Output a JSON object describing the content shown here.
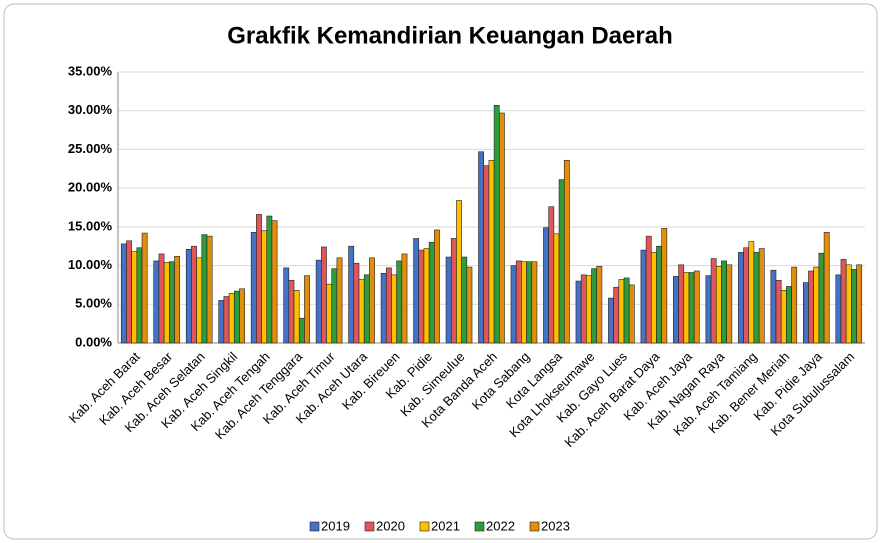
{
  "chart_data": {
    "type": "bar",
    "title": "Grakfik Kemandirian Keuangan Daerah",
    "categories": [
      "Kab. Aceh Barat",
      "Kab. Aceh Besar",
      "Kab. Aceh Selatan",
      "Kab. Aceh Singkil",
      "Kab. Aceh Tengah",
      "Kab. Aceh Tenggara",
      "Kab. Aceh Timur",
      "Kab. Aceh Utara",
      "Kab. Bireuen",
      "Kab. Pidie",
      "Kab. Simeulue",
      "Kota Banda Aceh",
      "Kota Sabang",
      "Kota Langsa",
      "Kota Lhokseumawe",
      "Kab. Gayo Lues",
      "Kab. Aceh Barat Daya",
      "Kab. Aceh Jaya",
      "Kab. Nagan Raya",
      "Kab. Aceh Tamiang",
      "Kab. Bener Meriah",
      "Kab. Pidie Jaya",
      "Kota Subulussalam"
    ],
    "series": [
      {
        "name": "2019",
        "color": "#4472c4",
        "values": [
          12.8,
          10.6,
          12.1,
          5.5,
          14.3,
          9.7,
          10.7,
          12.5,
          9.0,
          13.5,
          11.1,
          24.7,
          10.0,
          14.9,
          8.0,
          5.8,
          12.0,
          8.6,
          8.7,
          11.7,
          9.4,
          7.8,
          8.8
        ]
      },
      {
        "name": "2020",
        "color": "#e15759",
        "values": [
          13.2,
          11.5,
          12.5,
          6.0,
          16.6,
          8.1,
          12.4,
          10.3,
          9.7,
          12.0,
          13.5,
          22.9,
          10.6,
          17.6,
          8.8,
          7.2,
          13.8,
          10.1,
          10.9,
          12.3,
          8.1,
          9.3,
          10.8
        ]
      },
      {
        "name": "2021",
        "color": "#ffc000",
        "values": [
          11.8,
          10.4,
          11.0,
          6.4,
          14.5,
          6.8,
          7.6,
          8.2,
          8.8,
          12.2,
          18.4,
          23.6,
          10.5,
          14.1,
          8.7,
          8.2,
          11.7,
          9.1,
          9.9,
          13.1,
          6.8,
          9.8,
          10.1
        ]
      },
      {
        "name": "2022",
        "color": "#2e9c3a",
        "values": [
          12.3,
          10.5,
          14.0,
          6.7,
          16.4,
          3.2,
          9.6,
          8.8,
          10.6,
          13.0,
          11.1,
          30.7,
          10.5,
          21.1,
          9.6,
          8.4,
          12.5,
          9.1,
          10.6,
          11.7,
          7.3,
          11.6,
          9.5
        ]
      },
      {
        "name": "2023",
        "color": "#e08e0b",
        "values": [
          14.2,
          11.2,
          13.8,
          7.0,
          15.8,
          8.7,
          11.0,
          11.0,
          11.5,
          14.6,
          9.8,
          29.7,
          10.5,
          23.6,
          9.9,
          7.5,
          14.8,
          9.3,
          10.1,
          12.2,
          9.8,
          14.3,
          10.1
        ]
      }
    ],
    "ylim": [
      0,
      35
    ],
    "yticks": [
      {
        "value": 0,
        "label": "0.00%"
      },
      {
        "value": 5,
        "label": "5.00%"
      },
      {
        "value": 10,
        "label": "10.00%"
      },
      {
        "value": 15,
        "label": "15.00%"
      },
      {
        "value": 20,
        "label": "20.00%"
      },
      {
        "value": 25,
        "label": "25.00%"
      },
      {
        "value": 30,
        "label": "30.00%"
      },
      {
        "value": 35,
        "label": "35.00%"
      }
    ],
    "grid": true,
    "legend": "bottom"
  }
}
